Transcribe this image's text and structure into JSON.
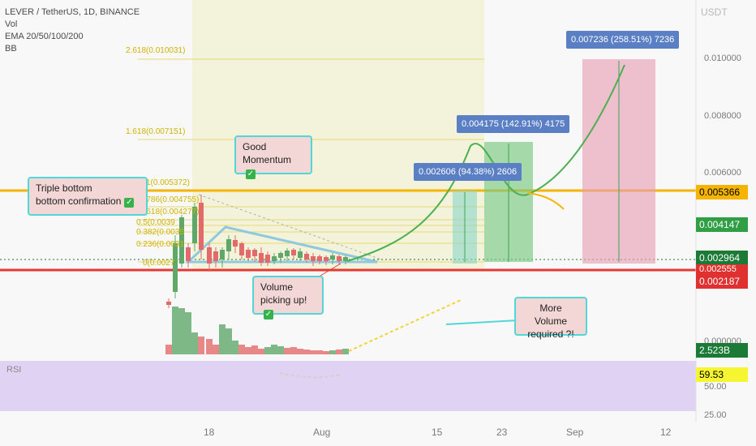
{
  "legend": {
    "symbol": "LEVER / TetherUS, 1D, BINANCE",
    "vol": "Vol",
    "ema": "EMA 20/50/100/200",
    "bb": "BB"
  },
  "axis": {
    "currency": "USDT",
    "ticks": [
      "0.010000",
      "0.008000",
      "0.006000",
      "0.000000",
      "50.00",
      "25.00"
    ]
  },
  "price_tags": [
    {
      "value": "0.005366",
      "color": "#f5b400",
      "text_color": "#000000"
    },
    {
      "value": "0.004147",
      "color": "#2f9e44",
      "text_color": "#ffffff"
    },
    {
      "value": "0.002964",
      "color": "#1b7a35",
      "text_color": "#ffffff"
    },
    {
      "value": "0.002555",
      "color": "#e03131",
      "text_color": "#ffffff"
    },
    {
      "value": "0.002187",
      "color": "#e03131",
      "text_color": "#ffffff"
    },
    {
      "value": "2.523B",
      "color": "#1b7a35",
      "text_color": "#ffffff"
    },
    {
      "value": "59.53",
      "color": "#f5f532",
      "text_color": "#000000"
    }
  ],
  "time_axis": [
    "18",
    "Aug",
    "15",
    "23",
    "Sep",
    "12"
  ],
  "fib_levels": [
    {
      "label": "2.618(0.010031)"
    },
    {
      "label": "1.618(0.007151)"
    },
    {
      "label": "1(0.005372)"
    },
    {
      "label": "0.786(0.004755)"
    },
    {
      "label": "0.618(0.004277)"
    },
    {
      "label": "0.5(0.0039"
    },
    {
      "label": "0.382(0.0035"
    },
    {
      "label": "0.236(0.0031"
    },
    {
      "label": "0(0.0027"
    }
  ],
  "notes": {
    "triple_bottom_line1": "Triple bottom",
    "triple_bottom_line2": "bottom confirmation",
    "good_momentum_line1": "Good",
    "good_momentum_line2": "Momentum",
    "volume_line1": "Volume",
    "volume_line2": "picking up!",
    "more_volume_line1": "More Volume",
    "more_volume_line2": "required ?!",
    "check": "✓"
  },
  "targets": [
    {
      "text": "0.002606 (94.38%) 2606"
    },
    {
      "text": "0.004175 (142.91%) 4175"
    },
    {
      "text": "0.007236 (258.51%) 7236"
    }
  ],
  "rsi": {
    "label": "RSI",
    "value": "59.53"
  },
  "colors": {
    "up": "#5fa86a",
    "down": "#e26a6a",
    "fib": "#f2d43a",
    "support": "#e53935",
    "resistance": "#f5b400",
    "target_green": "#7ac87e",
    "target_pink": "#e8a0b4",
    "rsi_bg": "#d8c8f0"
  }
}
